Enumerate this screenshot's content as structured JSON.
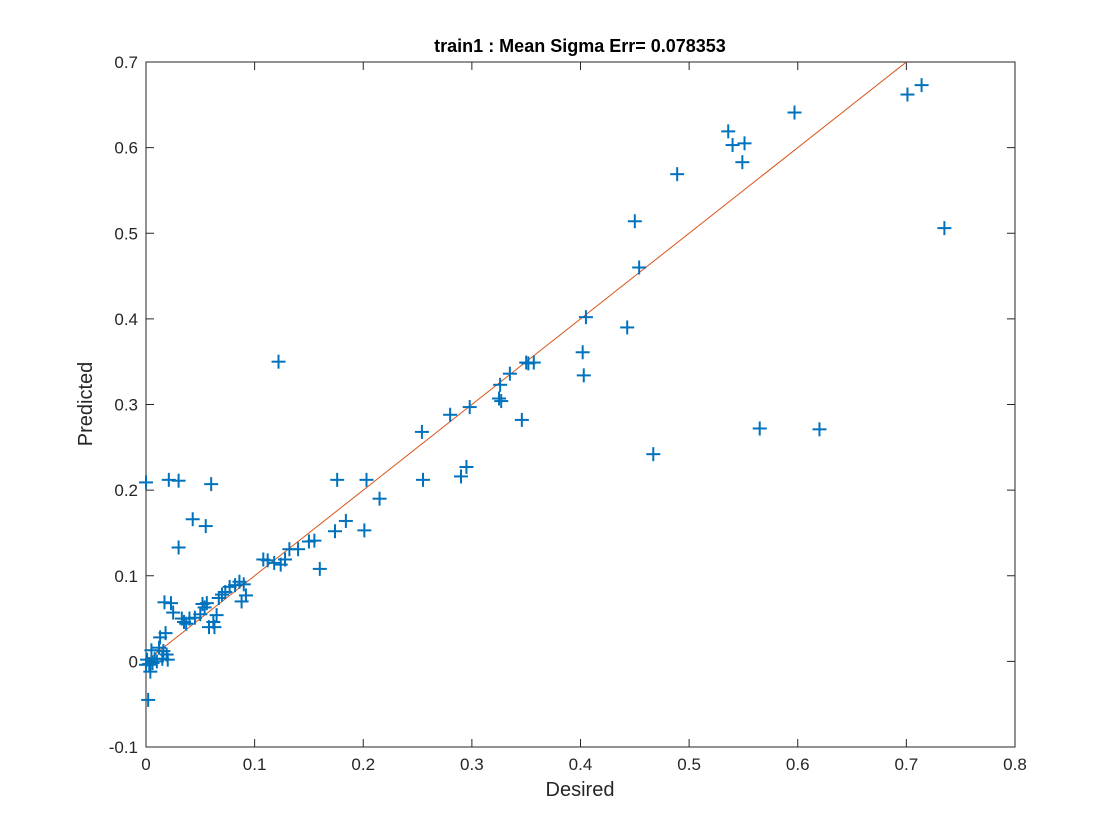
{
  "chart_data": {
    "type": "scatter",
    "title": "train1 :  Mean Sigma Err= 0.078353",
    "xlabel": "Desired",
    "ylabel": "Predicted",
    "xlim": [
      0,
      0.8
    ],
    "ylim": [
      -0.1,
      0.7
    ],
    "xticks": [
      "0",
      "0.1",
      "0.2",
      "0.3",
      "0.4",
      "0.5",
      "0.6",
      "0.7",
      "0.8"
    ],
    "yticks": [
      "-0.1",
      "0",
      "0.1",
      "0.2",
      "0.3",
      "0.4",
      "0.5",
      "0.6",
      "0.7"
    ],
    "grid": false,
    "legend": "none",
    "marker": "plus",
    "colors": {
      "points": "#0072bd",
      "reference_line": "#d95319",
      "axes": "#262626"
    },
    "reference_line": {
      "x": [
        0,
        0.7
      ],
      "y": [
        0,
        0.7
      ]
    },
    "series": [
      {
        "points": [
          [
            0.0,
            0.209
          ],
          [
            0.002,
            -0.045
          ],
          [
            0.0,
            -0.004
          ],
          [
            0.001,
            0.002
          ],
          [
            0.003,
            -0.003
          ],
          [
            0.004,
            -0.012
          ],
          [
            0.005,
            0.013
          ],
          [
            0.006,
            -0.002
          ],
          [
            0.008,
            0.003
          ],
          [
            0.01,
            0.0
          ],
          [
            0.012,
            0.016
          ],
          [
            0.013,
            0.028
          ],
          [
            0.015,
            0.003
          ],
          [
            0.016,
            0.012
          ],
          [
            0.017,
            0.069
          ],
          [
            0.018,
            0.033
          ],
          [
            0.019,
            0.008
          ],
          [
            0.02,
            0.002
          ],
          [
            0.021,
            0.212
          ],
          [
            0.023,
            0.068
          ],
          [
            0.025,
            0.057
          ],
          [
            0.03,
            0.211
          ],
          [
            0.03,
            0.133
          ],
          [
            0.033,
            0.05
          ],
          [
            0.035,
            0.046
          ],
          [
            0.037,
            0.044
          ],
          [
            0.04,
            0.05
          ],
          [
            0.043,
            0.166
          ],
          [
            0.045,
            0.051
          ],
          [
            0.05,
            0.055
          ],
          [
            0.052,
            0.067
          ],
          [
            0.054,
            0.063
          ],
          [
            0.055,
            0.158
          ],
          [
            0.056,
            0.068
          ],
          [
            0.058,
            0.04
          ],
          [
            0.06,
            0.207
          ],
          [
            0.062,
            0.046
          ],
          [
            0.063,
            0.04
          ],
          [
            0.065,
            0.054
          ],
          [
            0.067,
            0.074
          ],
          [
            0.07,
            0.078
          ],
          [
            0.073,
            0.081
          ],
          [
            0.077,
            0.087
          ],
          [
            0.082,
            0.089
          ],
          [
            0.086,
            0.093
          ],
          [
            0.088,
            0.07
          ],
          [
            0.09,
            0.09
          ],
          [
            0.092,
            0.077
          ],
          [
            0.108,
            0.119
          ],
          [
            0.112,
            0.118
          ],
          [
            0.118,
            0.115
          ],
          [
            0.122,
            0.35
          ],
          [
            0.124,
            0.113
          ],
          [
            0.128,
            0.119
          ],
          [
            0.132,
            0.131
          ],
          [
            0.14,
            0.131
          ],
          [
            0.15,
            0.14
          ],
          [
            0.155,
            0.141
          ],
          [
            0.16,
            0.108
          ],
          [
            0.174,
            0.152
          ],
          [
            0.176,
            0.212
          ],
          [
            0.184,
            0.164
          ],
          [
            0.201,
            0.153
          ],
          [
            0.203,
            0.212
          ],
          [
            0.215,
            0.19
          ],
          [
            0.254,
            0.268
          ],
          [
            0.255,
            0.212
          ],
          [
            0.28,
            0.288
          ],
          [
            0.29,
            0.216
          ],
          [
            0.295,
            0.227
          ],
          [
            0.298,
            0.297
          ],
          [
            0.325,
            0.307
          ],
          [
            0.326,
            0.323
          ],
          [
            0.327,
            0.304
          ],
          [
            0.335,
            0.336
          ],
          [
            0.346,
            0.282
          ],
          [
            0.35,
            0.349
          ],
          [
            0.352,
            0.348
          ],
          [
            0.357,
            0.349
          ],
          [
            0.402,
            0.361
          ],
          [
            0.403,
            0.334
          ],
          [
            0.405,
            0.402
          ],
          [
            0.443,
            0.39
          ],
          [
            0.45,
            0.514
          ],
          [
            0.454,
            0.46
          ],
          [
            0.467,
            0.242
          ],
          [
            0.489,
            0.569
          ],
          [
            0.536,
            0.619
          ],
          [
            0.54,
            0.603
          ],
          [
            0.549,
            0.583
          ],
          [
            0.551,
            0.605
          ],
          [
            0.565,
            0.272
          ],
          [
            0.597,
            0.641
          ],
          [
            0.62,
            0.271
          ],
          [
            0.701,
            0.662
          ],
          [
            0.714,
            0.673
          ],
          [
            0.735,
            0.506
          ]
        ]
      }
    ]
  }
}
